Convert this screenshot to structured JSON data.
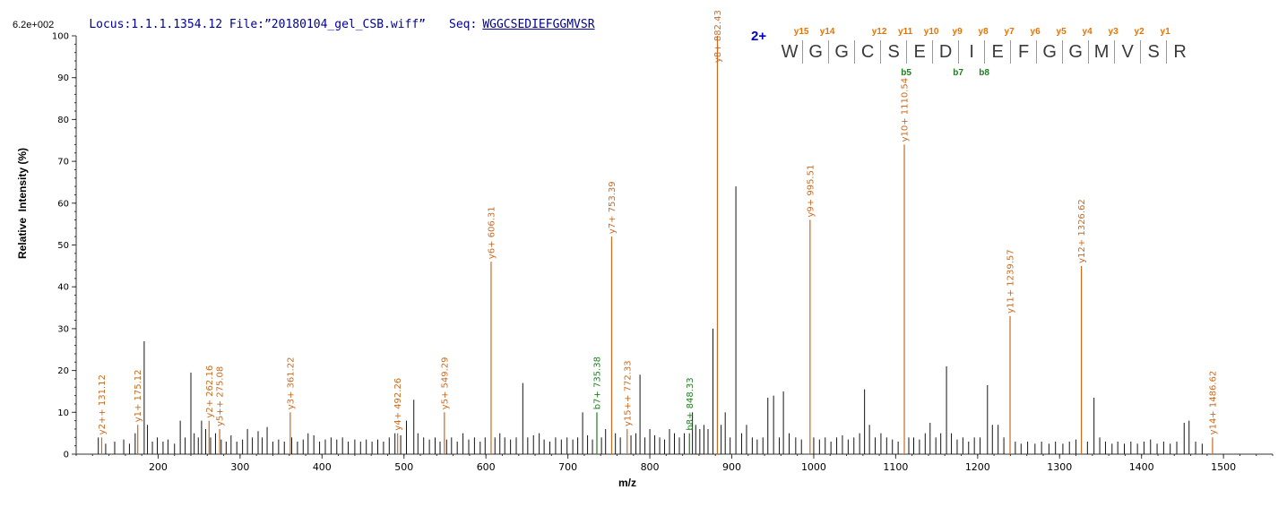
{
  "header": {
    "locus_file": "Locus:1.1.1.1354.12 File:”20180104_gel_CSB.wiff”",
    "seq_label": "Seq:",
    "sequence": "WGGCSEDIEFGGMVSR"
  },
  "chart_data": {
    "type": "bar",
    "title": "",
    "xlabel": "m/z",
    "ylabel": "Relative  Intensity (%)",
    "y_scale_label": "6.2e+002",
    "xlim": [
      100,
      1560
    ],
    "ylim": [
      0,
      100
    ],
    "grid": false,
    "legend": false,
    "x_ticks": [
      200,
      300,
      400,
      500,
      600,
      700,
      800,
      900,
      1000,
      1100,
      1200,
      1300,
      1400,
      1500
    ],
    "y_ticks": [
      0,
      10,
      20,
      30,
      40,
      50,
      60,
      70,
      80,
      90,
      100
    ],
    "peptide_display": {
      "charge": "2+",
      "residues": [
        {
          "aa": "W",
          "y": "y15"
        },
        {
          "aa": "G",
          "y": "y14"
        },
        {
          "aa": "G"
        },
        {
          "aa": "C",
          "y": "y12"
        },
        {
          "aa": "S",
          "y": "y11",
          "b": "b5"
        },
        {
          "aa": "E",
          "y": "y10"
        },
        {
          "aa": "D",
          "y": "y9",
          "b": "b7"
        },
        {
          "aa": "I",
          "y": "y8",
          "b": "b8"
        },
        {
          "aa": "E",
          "y": "y7"
        },
        {
          "aa": "F",
          "y": "y6"
        },
        {
          "aa": "G",
          "y": "y5"
        },
        {
          "aa": "G",
          "y": "y4"
        },
        {
          "aa": "M",
          "y": "y3"
        },
        {
          "aa": "V",
          "y": "y2"
        },
        {
          "aa": "S",
          "y": "y1"
        },
        {
          "aa": "R"
        }
      ]
    },
    "annotated_peaks": [
      {
        "ion": "y2++",
        "series": "y",
        "mz": 131.12,
        "intensity": 4
      },
      {
        "ion": "y1+",
        "series": "y",
        "mz": 175.12,
        "intensity": 7
      },
      {
        "ion": "y2+",
        "series": "y",
        "mz": 262.16,
        "intensity": 8
      },
      {
        "ion": "y5++",
        "series": "y",
        "mz": 275.08,
        "intensity": 6
      },
      {
        "ion": "y3+",
        "series": "y",
        "mz": 361.22,
        "intensity": 10
      },
      {
        "ion": "y4+",
        "series": "y",
        "mz": 492.26,
        "intensity": 5
      },
      {
        "ion": "y5+",
        "series": "y",
        "mz": 549.29,
        "intensity": 10
      },
      {
        "ion": "y6+",
        "series": "y",
        "mz": 606.31,
        "intensity": 46
      },
      {
        "ion": "b7+",
        "series": "b",
        "mz": 735.38,
        "intensity": 10
      },
      {
        "ion": "y7+",
        "series": "y",
        "mz": 753.39,
        "intensity": 52
      },
      {
        "ion": "y15++",
        "series": "y",
        "mz": 772.33,
        "intensity": 6
      },
      {
        "ion": "b8+",
        "series": "b",
        "mz": 848.33,
        "intensity": 5
      },
      {
        "ion": "y8+",
        "series": "y",
        "mz": 882.43,
        "intensity": 100
      },
      {
        "ion": "y9+",
        "series": "y",
        "mz": 995.51,
        "intensity": 56
      },
      {
        "ion": "y10+",
        "series": "y",
        "mz": 1110.54,
        "intensity": 74
      },
      {
        "ion": "y11+",
        "series": "y",
        "mz": 1239.57,
        "intensity": 33
      },
      {
        "ion": "y12+",
        "series": "y",
        "mz": 1326.62,
        "intensity": 45
      },
      {
        "ion": "y14+",
        "series": "y",
        "mz": 1486.62,
        "intensity": 4
      }
    ],
    "unannotated_peaks": [
      [
        127,
        4
      ],
      [
        136,
        2.5
      ],
      [
        147,
        3
      ],
      [
        158,
        3.5
      ],
      [
        165,
        2.5
      ],
      [
        172,
        5
      ],
      [
        183,
        27
      ],
      [
        187,
        7
      ],
      [
        193,
        3
      ],
      [
        199,
        4
      ],
      [
        206,
        3
      ],
      [
        212,
        3.5
      ],
      [
        220,
        2.5
      ],
      [
        227,
        8
      ],
      [
        233,
        4
      ],
      [
        240,
        19.5
      ],
      [
        244,
        5
      ],
      [
        249,
        4
      ],
      [
        253,
        8
      ],
      [
        258,
        6
      ],
      [
        264,
        4
      ],
      [
        270,
        5
      ],
      [
        277,
        3.5
      ],
      [
        283,
        3
      ],
      [
        289,
        4.5
      ],
      [
        296,
        3
      ],
      [
        303,
        3.5
      ],
      [
        309,
        6
      ],
      [
        315,
        4
      ],
      [
        322,
        5.5
      ],
      [
        327,
        4
      ],
      [
        333,
        6.5
      ],
      [
        340,
        3
      ],
      [
        347,
        3.5
      ],
      [
        354,
        3
      ],
      [
        363,
        4
      ],
      [
        370,
        3
      ],
      [
        377,
        3.5
      ],
      [
        383,
        5
      ],
      [
        390,
        4.5
      ],
      [
        397,
        3
      ],
      [
        404,
        3.5
      ],
      [
        411,
        4
      ],
      [
        418,
        3.5
      ],
      [
        425,
        4
      ],
      [
        432,
        3
      ],
      [
        440,
        3.5
      ],
      [
        447,
        3
      ],
      [
        454,
        3.5
      ],
      [
        461,
        3
      ],
      [
        468,
        3.5
      ],
      [
        475,
        3
      ],
      [
        482,
        4
      ],
      [
        489,
        5
      ],
      [
        496,
        4.5
      ],
      [
        503,
        8
      ],
      [
        512,
        13
      ],
      [
        517,
        5
      ],
      [
        524,
        4
      ],
      [
        531,
        3.5
      ],
      [
        538,
        4
      ],
      [
        544,
        3
      ],
      [
        552,
        3.5
      ],
      [
        558,
        4
      ],
      [
        565,
        3
      ],
      [
        572,
        5
      ],
      [
        579,
        3.5
      ],
      [
        586,
        4
      ],
      [
        593,
        3
      ],
      [
        599,
        4
      ],
      [
        611,
        4
      ],
      [
        617,
        5
      ],
      [
        623,
        4
      ],
      [
        630,
        3.5
      ],
      [
        637,
        4
      ],
      [
        645,
        17
      ],
      [
        651,
        4
      ],
      [
        658,
        4.5
      ],
      [
        665,
        5
      ],
      [
        671,
        3.5
      ],
      [
        678,
        3
      ],
      [
        685,
        4
      ],
      [
        692,
        3.5
      ],
      [
        699,
        4
      ],
      [
        706,
        3.5
      ],
      [
        712,
        4
      ],
      [
        718,
        10
      ],
      [
        724,
        4.5
      ],
      [
        730,
        3.5
      ],
      [
        741,
        4
      ],
      [
        746,
        6
      ],
      [
        758,
        5
      ],
      [
        764,
        4
      ],
      [
        777,
        4.5
      ],
      [
        783,
        5
      ],
      [
        788,
        19
      ],
      [
        794,
        4
      ],
      [
        800,
        6
      ],
      [
        806,
        4.5
      ],
      [
        812,
        4
      ],
      [
        818,
        3.5
      ],
      [
        824,
        6
      ],
      [
        830,
        5
      ],
      [
        836,
        4
      ],
      [
        842,
        5
      ],
      [
        852,
        10
      ],
      [
        856,
        7
      ],
      [
        861,
        6
      ],
      [
        866,
        7
      ],
      [
        871,
        6
      ],
      [
        877,
        30
      ],
      [
        887,
        7
      ],
      [
        892,
        10
      ],
      [
        898,
        4
      ],
      [
        905,
        64
      ],
      [
        912,
        5
      ],
      [
        918,
        7
      ],
      [
        925,
        4
      ],
      [
        931,
        3.5
      ],
      [
        938,
        4
      ],
      [
        944,
        13.5
      ],
      [
        951,
        14
      ],
      [
        958,
        4
      ],
      [
        963,
        15
      ],
      [
        970,
        5
      ],
      [
        978,
        4
      ],
      [
        985,
        3.5
      ],
      [
        1000,
        4
      ],
      [
        1007,
        3.5
      ],
      [
        1014,
        4
      ],
      [
        1021,
        3
      ],
      [
        1028,
        4
      ],
      [
        1035,
        4.5
      ],
      [
        1042,
        3.5
      ],
      [
        1049,
        4
      ],
      [
        1056,
        5
      ],
      [
        1062,
        15.5
      ],
      [
        1068,
        7
      ],
      [
        1075,
        4
      ],
      [
        1082,
        5
      ],
      [
        1089,
        4
      ],
      [
        1096,
        3.5
      ],
      [
        1103,
        3
      ],
      [
        1116,
        4
      ],
      [
        1122,
        4
      ],
      [
        1129,
        3.5
      ],
      [
        1136,
        5
      ],
      [
        1142,
        7.5
      ],
      [
        1149,
        4
      ],
      [
        1155,
        5
      ],
      [
        1162,
        21
      ],
      [
        1168,
        5
      ],
      [
        1175,
        3.5
      ],
      [
        1182,
        4
      ],
      [
        1189,
        3
      ],
      [
        1196,
        4
      ],
      [
        1203,
        4
      ],
      [
        1212,
        16.5
      ],
      [
        1218,
        7
      ],
      [
        1225,
        7
      ],
      [
        1232,
        4
      ],
      [
        1246,
        3
      ],
      [
        1253,
        2.5
      ],
      [
        1261,
        3
      ],
      [
        1270,
        2.5
      ],
      [
        1278,
        3
      ],
      [
        1287,
        2.5
      ],
      [
        1295,
        3
      ],
      [
        1304,
        2.5
      ],
      [
        1312,
        3
      ],
      [
        1320,
        3.5
      ],
      [
        1334,
        3
      ],
      [
        1342,
        13.5
      ],
      [
        1349,
        4
      ],
      [
        1356,
        3
      ],
      [
        1364,
        2.5
      ],
      [
        1371,
        3
      ],
      [
        1379,
        2.5
      ],
      [
        1387,
        3
      ],
      [
        1395,
        2.5
      ],
      [
        1403,
        3
      ],
      [
        1411,
        3.5
      ],
      [
        1419,
        2.5
      ],
      [
        1427,
        3
      ],
      [
        1435,
        2.5
      ],
      [
        1443,
        3
      ],
      [
        1452,
        7.5
      ],
      [
        1458,
        8
      ],
      [
        1466,
        3
      ],
      [
        1474,
        2.5
      ]
    ],
    "colors": {
      "peak": "#141414",
      "y_ion": "#c96a1f",
      "b_ion": "#1e7d1e",
      "ladder_y": "#e67300",
      "ladder_b": "#1e7d1e",
      "axis": "#333333",
      "header": "#000099",
      "charge": "#0000cc"
    }
  }
}
